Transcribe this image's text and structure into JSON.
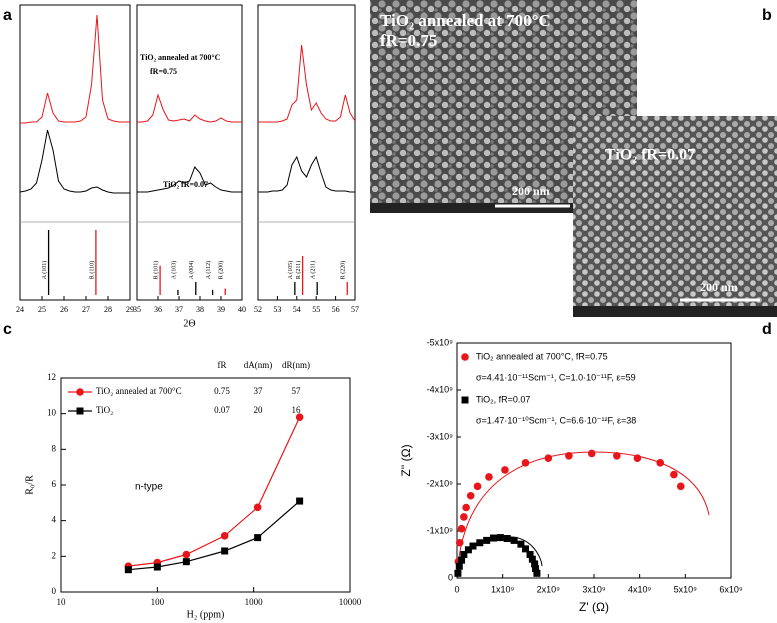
{
  "panel_labels": [
    "a",
    "b",
    "c",
    "d"
  ],
  "images": [
    {
      "caption": "TiO₂ annealed at 700°C",
      "caption2": "fR=0.75",
      "scale_bar": "200 nm"
    },
    {
      "caption": "TiO₂ fR=0.07",
      "scale_bar": "200 nm"
    }
  ],
  "chart_data": [
    {
      "type": "xrd",
      "x": [
        24,
        24.25,
        24.5,
        24.75,
        25,
        25.25,
        25.5,
        25.75,
        26,
        26.25,
        26.5,
        26.75,
        27,
        27.25,
        27.5,
        27.75,
        28,
        28.25,
        28.5,
        28.75,
        29
      ],
      "series": [
        {
          "color": "#e8161a",
          "values": [
            2,
            2,
            3,
            3,
            8,
            32,
            12,
            4,
            3,
            3,
            3,
            4,
            8,
            40,
            110,
            25,
            6,
            4,
            3,
            3,
            3
          ]
        },
        {
          "color": "#000000",
          "values": [
            3,
            4,
            6,
            12,
            35,
            65,
            45,
            14,
            6,
            4,
            3,
            3,
            4,
            7,
            8,
            5,
            3,
            2,
            2,
            2,
            2
          ]
        }
      ],
      "xlim": [
        24,
        29
      ],
      "xticks": [
        24,
        25,
        26,
        27,
        28,
        29
      ],
      "sticks": {
        "positions": [
          25.3,
          27.45
        ],
        "labels": [
          "A (101)",
          "R (110)"
        ],
        "colors": [
          "#000000",
          "#e8161a"
        ],
        "values": [
          100,
          100
        ]
      }
    },
    {
      "type": "xrd",
      "x": [
        35,
        35.25,
        35.5,
        35.75,
        36,
        36.25,
        36.5,
        36.75,
        37,
        37.25,
        37.5,
        37.75,
        38,
        38.25,
        38.5,
        38.75,
        39,
        39.25,
        39.5,
        39.75,
        40
      ],
      "series": [
        {
          "color": "#e8161a",
          "values": [
            3,
            3,
            4,
            10,
            30,
            15,
            5,
            4,
            5,
            6,
            4,
            10,
            6,
            4,
            3,
            4,
            7,
            4,
            3,
            3,
            3
          ]
        },
        {
          "color": "#000000",
          "values": [
            3,
            3,
            3,
            4,
            5,
            6,
            7,
            10,
            14,
            12,
            14,
            28,
            22,
            10,
            12,
            8,
            5,
            4,
            3,
            3,
            3
          ]
        }
      ],
      "xlim": [
        35,
        40
      ],
      "xticks": [
        35,
        36,
        37,
        38,
        39,
        40
      ],
      "xlabel": "2Θ",
      "annotations": [
        "TiO₂ annealed at 700°C",
        "fR=0.75",
        "TiO₂ fR=0.07"
      ],
      "sticks": {
        "positions": [
          36.1,
          36.95,
          37.8,
          38.6,
          39.2
        ],
        "labels": [
          "R (101)",
          "A (103)",
          "A (004)",
          "A (112)",
          "R (200)"
        ],
        "colors": [
          "#e8161a",
          "#000000",
          "#000000",
          "#000000",
          "#e8161a"
        ],
        "values": [
          45,
          8,
          20,
          8,
          10
        ]
      }
    },
    {
      "type": "xrd",
      "x": [
        52,
        52.25,
        52.5,
        52.75,
        53,
        53.25,
        53.5,
        53.75,
        54,
        54.25,
        54.5,
        54.75,
        55,
        55.25,
        55.5,
        55.75,
        56,
        56.25,
        56.5,
        56.75,
        57
      ],
      "series": [
        {
          "color": "#e8161a",
          "values": [
            3,
            3,
            3,
            3,
            3,
            4,
            6,
            20,
            25,
            80,
            40,
            15,
            22,
            12,
            6,
            4,
            4,
            8,
            30,
            12,
            4
          ]
        },
        {
          "color": "#000000",
          "values": [
            3,
            3,
            3,
            4,
            4,
            5,
            10,
            30,
            38,
            24,
            18,
            30,
            38,
            22,
            8,
            5,
            4,
            4,
            4,
            3,
            3
          ]
        }
      ],
      "xlim": [
        52,
        57
      ],
      "xticks": [
        52,
        53,
        54,
        55,
        56,
        57
      ],
      "sticks": {
        "positions": [
          53.9,
          54.3,
          55.05,
          56.6
        ],
        "labels": [
          "A (105)",
          "R (211)",
          "A (211)",
          "R (220)"
        ],
        "colors": [
          "#000000",
          "#e8161a",
          "#000000",
          "#e8161a"
        ],
        "values": [
          20,
          60,
          20,
          20
        ]
      }
    },
    {
      "type": "line",
      "xlog": true,
      "xlabel": "H₂ (ppm)",
      "ylabel": "R₀/R",
      "annotation": "n-type",
      "x": [
        50,
        100,
        200,
        500,
        1100,
        3000
      ],
      "series": [
        {
          "name": "TiO₂ annealed at 700°C",
          "color": "#e8161a",
          "marker": "circle",
          "values": [
            1.45,
            1.65,
            2.1,
            3.15,
            4.75,
            9.8
          ]
        },
        {
          "name": "TiO₂",
          "color": "#000000",
          "marker": "square",
          "values": [
            1.25,
            1.4,
            1.7,
            2.3,
            3.05,
            5.1
          ]
        }
      ],
      "xlim": [
        10,
        10000
      ],
      "xticks": [
        10,
        100,
        1000,
        10000
      ],
      "ylim": [
        0,
        12
      ],
      "yticks": [
        0,
        2,
        4,
        6,
        8,
        10,
        12
      ],
      "table": {
        "header": [
          "fR",
          "dA(nm)",
          "dR(nm)"
        ],
        "rows": [
          [
            0.75,
            37,
            57
          ],
          [
            0.07,
            20,
            16
          ]
        ]
      }
    },
    {
      "type": "scatter",
      "xlabel": "Z' (Ω)",
      "ylabel": "Z'' (Ω)",
      "xlim": [
        0,
        6000000000.0
      ],
      "xticks": [
        0,
        {
          "value": 1000000000.0,
          "label": "1x10⁹"
        },
        {
          "value": 2000000000.0,
          "label": "2x10⁹"
        },
        {
          "value": 3000000000.0,
          "label": "3x10⁹"
        },
        {
          "value": 4000000000.0,
          "label": "4x10⁹"
        },
        {
          "value": 5000000000.0,
          "label": "5x10⁹"
        },
        {
          "value": 6000000000.0,
          "label": "6x10⁹"
        }
      ],
      "ylim": [
        0,
        -5000000000.0
      ],
      "yticks": [
        0,
        {
          "value": -1000000000.0,
          "label": "-1x10⁹"
        },
        {
          "value": -2000000000.0,
          "label": "-2x10⁹"
        },
        {
          "value": -3000000000.0,
          "label": "-3x10⁹"
        },
        {
          "value": -4000000000.0,
          "label": "-4x10⁹"
        },
        {
          "value": -5000000000.0,
          "label": "-5x10⁹"
        }
      ],
      "series": [
        {
          "name": "TiO₂ annealed at 700°C, fR=0.75",
          "detail": "σ=4.41·10⁻¹¹Scm⁻¹, C=1.0·10⁻¹¹F, ε=59",
          "color": "#e8161a",
          "marker": "circle",
          "x": [
            30000000.0,
            60000000.0,
            100000000.0,
            150000000.0,
            200000000.0,
            300000000.0,
            450000000.0,
            700000000.0,
            1050000000.0,
            1500000000.0,
            2000000000.0,
            2450000000.0,
            2950000000.0,
            3500000000.0,
            3950000000.0,
            4450000000.0,
            4750000000.0,
            4900000000.0
          ],
          "values": [
            -350000000.0,
            -750000000.0,
            -1050000000.0,
            -1300000000.0,
            -1500000000.0,
            -1750000000.0,
            -1950000000.0,
            -2150000000.0,
            -2300000000.0,
            -2450000000.0,
            -2550000000.0,
            -2600000000.0,
            -2650000000.0,
            -2600000000.0,
            -2550000000.0,
            -2450000000.0,
            -2200000000.0,
            -1950000000.0
          ]
        },
        {
          "name": "TiO₂, fR=0.07",
          "detail": "σ=1.47·10⁻¹⁰Scm⁻¹, C=6.6·10⁻¹²F, ε=38",
          "color": "#000000",
          "marker": "square",
          "x": [
            20000000.0,
            50000000.0,
            100000000.0,
            150000000.0,
            250000000.0,
            350000000.0,
            500000000.0,
            650000000.0,
            800000000.0,
            950000000.0,
            1100000000.0,
            1250000000.0,
            1400000000.0,
            1500000000.0,
            1600000000.0,
            1650000000.0,
            1700000000.0,
            1720000000.0,
            1750000000.0
          ],
          "values": [
            -100000000.0,
            -250000000.0,
            -380000000.0,
            -500000000.0,
            -600000000.0,
            -680000000.0,
            -750000000.0,
            -800000000.0,
            -850000000.0,
            -860000000.0,
            -840000000.0,
            -800000000.0,
            -720000000.0,
            -620000000.0,
            -500000000.0,
            -400000000.0,
            -300000000.0,
            -200000000.0,
            -100000000.0
          ]
        }
      ]
    }
  ]
}
